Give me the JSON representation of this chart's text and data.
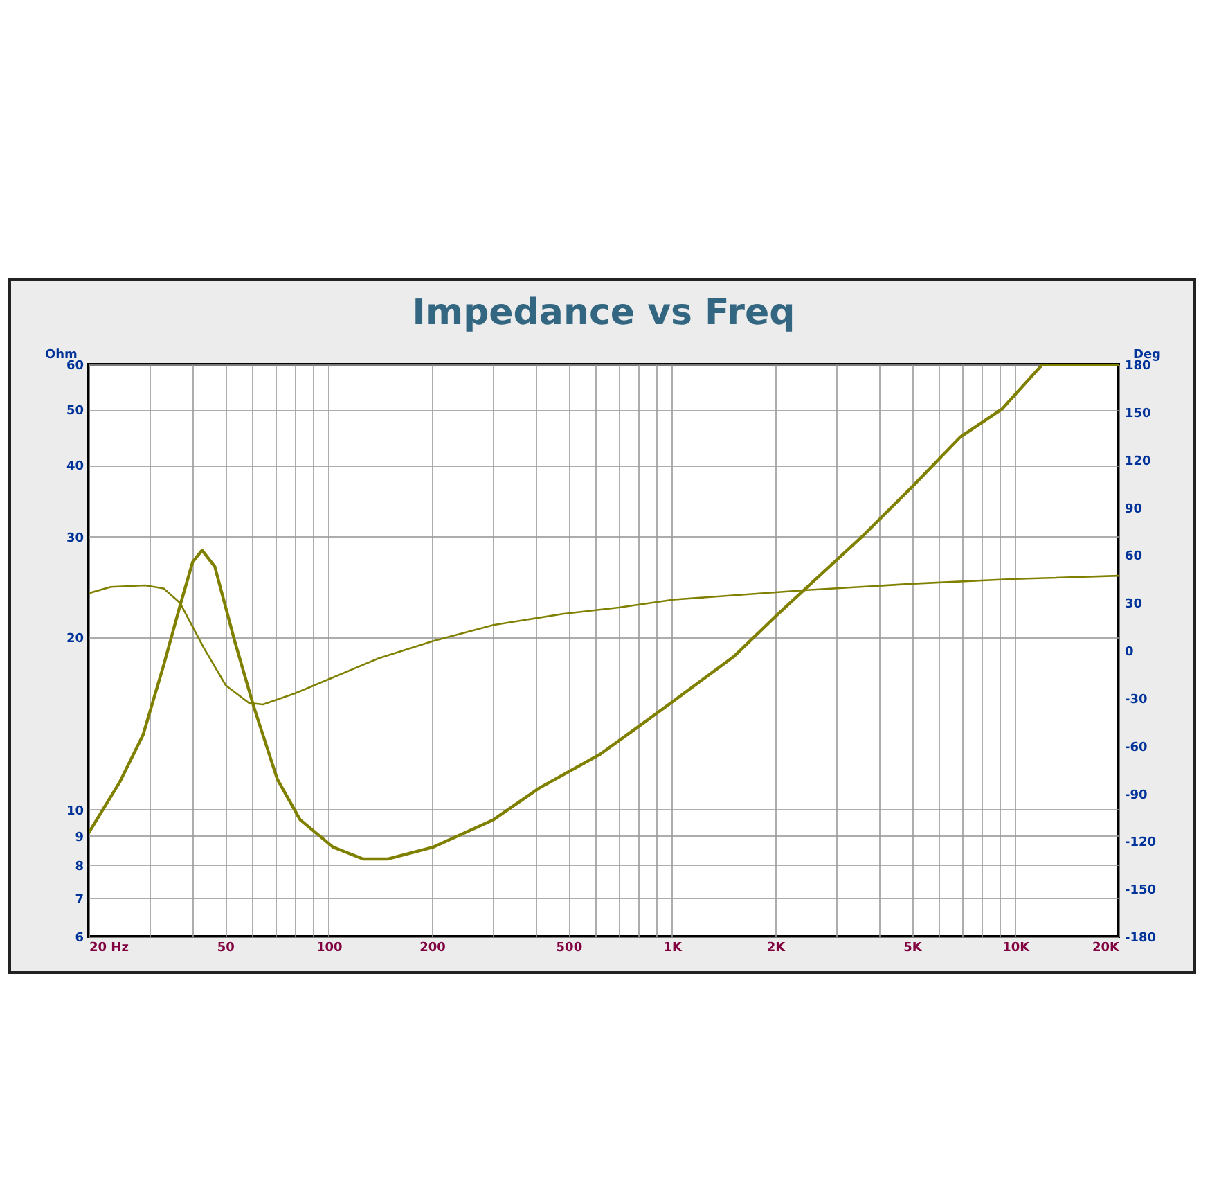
{
  "chart_data": {
    "type": "line",
    "title": "Impedance vs Freq",
    "ylabel": "Ohm",
    "y2label": "Deg",
    "log": "xy",
    "grid": true,
    "marker": "none",
    "line_style": "solid",
    "xlim": [
      20,
      20000
    ],
    "xticks": [
      {
        "value": 20,
        "label": "20  Hz"
      },
      {
        "value": 30,
        "label": null
      },
      {
        "value": 40,
        "label": null
      },
      50,
      {
        "value": 60,
        "label": null
      },
      {
        "value": 70,
        "label": null
      },
      {
        "value": 80,
        "label": null
      },
      {
        "value": 90,
        "label": null
      },
      100,
      200,
      {
        "value": 300,
        "label": null
      },
      {
        "value": 400,
        "label": null
      },
      500,
      {
        "value": 600,
        "label": null
      },
      {
        "value": 700,
        "label": null
      },
      {
        "value": 800,
        "label": null
      },
      {
        "value": 900,
        "label": null
      },
      {
        "value": 1000,
        "label": "1K"
      },
      {
        "value": 2000,
        "label": "2K"
      },
      {
        "value": 3000,
        "label": null
      },
      {
        "value": 4000,
        "label": null
      },
      {
        "value": 5000,
        "label": "5K"
      },
      {
        "value": 6000,
        "label": null
      },
      {
        "value": 7000,
        "label": null
      },
      {
        "value": 8000,
        "label": null
      },
      {
        "value": 9000,
        "label": null
      },
      {
        "value": 10000,
        "label": "10K"
      },
      {
        "value": 20000,
        "label": "20K"
      }
    ],
    "ylim": [
      6,
      60
    ],
    "yticks": [
      6,
      7,
      8,
      9,
      10,
      20,
      30,
      40,
      50,
      60
    ],
    "y2lim": [
      -180,
      180
    ],
    "y2ticks": [
      -180,
      -150,
      -120,
      -90,
      -60,
      -30,
      0,
      30,
      60,
      90,
      120,
      150,
      180
    ],
    "series": [
      {
        "color": "#808000",
        "x": [
          20,
          24.7,
          28.8,
          33.1,
          36.9,
          40.2,
          42.8,
          46.6,
          53.4,
          60.6,
          70.9,
          82.6,
          103,
          126,
          149,
          202,
          302,
          410,
          618,
          790,
          1014,
          1512,
          2024,
          2478,
          3600,
          5060,
          6920,
          9140,
          12000,
          20000
        ],
        "values": [
          9.1,
          11.2,
          13.5,
          17.9,
          22.7,
          27.1,
          28.4,
          26.6,
          19.6,
          15.1,
          11.3,
          9.6,
          8.6,
          8.2,
          8.2,
          8.6,
          9.6,
          10.9,
          12.5,
          13.9,
          15.5,
          18.5,
          21.9,
          24.5,
          30.1,
          36.9,
          44.8,
          50.1,
          60,
          60
        ]
      },
      {
        "color": "#808000",
        "axis": "y2",
        "x": [
          20,
          23.2,
          29.2,
          33.1,
          36.9,
          43.2,
          50.2,
          58.6,
          64.4,
          79.8,
          103,
          139.6,
          202,
          302,
          480,
          700,
          1014,
          2478,
          5060,
          10000,
          20000
        ],
        "values": [
          36,
          40,
          41,
          39,
          30,
          2,
          -22,
          -33,
          -34,
          -27,
          -17,
          -5,
          6,
          16,
          23,
          27,
          32,
          38,
          42,
          45,
          47
        ]
      }
    ]
  }
}
